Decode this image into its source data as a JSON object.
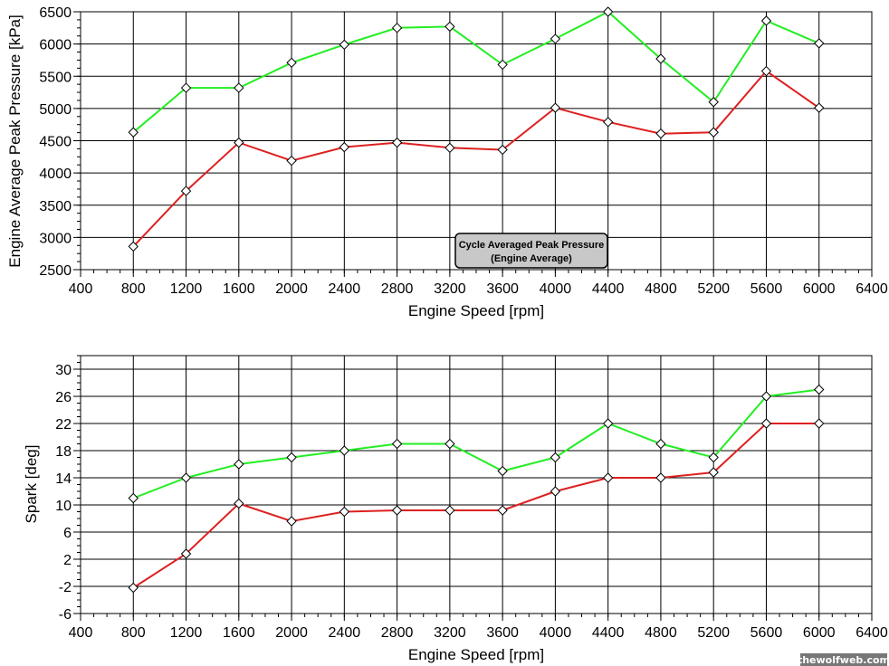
{
  "chart_data": [
    {
      "type": "line",
      "xlabel": "Engine Speed [rpm]",
      "ylabel": "Engine Average Peak Pressure [kPa]",
      "xlim": [
        400,
        6400
      ],
      "ylim": [
        2500,
        6500
      ],
      "xticks": [
        400,
        800,
        1200,
        1600,
        2000,
        2400,
        2800,
        3200,
        3600,
        4000,
        4400,
        4800,
        5200,
        5600,
        6000,
        6400
      ],
      "yticks": [
        2500,
        3000,
        3500,
        4000,
        4500,
        5000,
        5500,
        6000,
        6500
      ],
      "grid": true,
      "legend_box": {
        "line1": "Cycle Averaged Peak Pressure",
        "line2": "(Engine Average)"
      },
      "x": [
        800,
        1200,
        1600,
        2000,
        2400,
        2800,
        3200,
        3600,
        4000,
        4400,
        4800,
        5200,
        5600,
        6000
      ],
      "series": [
        {
          "color": "#22ee22",
          "values": [
            4630,
            5320,
            5320,
            5710,
            5990,
            6250,
            6270,
            5680,
            6080,
            6500,
            5770,
            5100,
            6360,
            6010
          ]
        },
        {
          "color": "#dd2020",
          "values": [
            2860,
            3720,
            4470,
            4190,
            4400,
            4470,
            4390,
            4360,
            5010,
            4790,
            4610,
            4630,
            5580,
            5010
          ]
        }
      ]
    },
    {
      "type": "line",
      "xlabel": "Engine Speed [rpm]",
      "ylabel": "Spark [deg]",
      "xlim": [
        400,
        6400
      ],
      "ylim": [
        -6,
        32
      ],
      "xticks": [
        400,
        800,
        1200,
        1600,
        2000,
        2400,
        2800,
        3200,
        3600,
        4000,
        4400,
        4800,
        5200,
        5600,
        6000,
        6400
      ],
      "yticks": [
        -6,
        -2,
        2,
        6,
        10,
        14,
        18,
        22,
        26,
        30
      ],
      "grid": true,
      "x": [
        800,
        1200,
        1600,
        2000,
        2400,
        2800,
        3200,
        3600,
        4000,
        4400,
        4800,
        5200,
        5600,
        6000
      ],
      "series": [
        {
          "color": "#22ee22",
          "values": [
            11,
            14,
            16,
            17,
            18,
            19,
            19,
            15,
            17,
            22,
            19,
            17,
            26,
            27
          ]
        },
        {
          "color": "#dd2020",
          "values": [
            -2.2,
            2.8,
            10.2,
            7.6,
            9,
            9.2,
            9.2,
            9.2,
            12,
            14,
            14,
            14.8,
            22,
            22
          ]
        }
      ]
    }
  ],
  "watermark": "thewolfweb.com"
}
